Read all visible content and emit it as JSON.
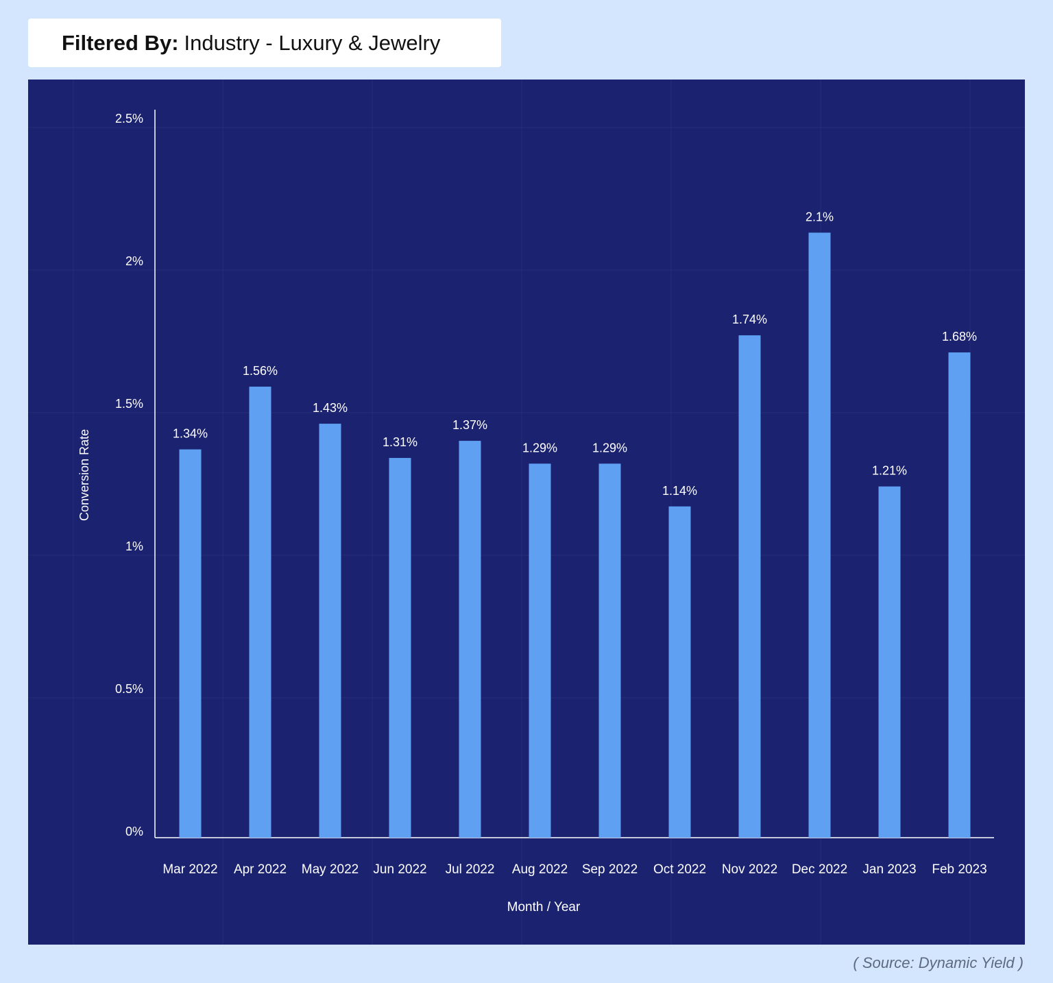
{
  "filter": {
    "label": "Filtered By:",
    "value": "Industry - Luxury & Jewelry"
  },
  "source": "( Source: Dynamic Yield )",
  "colors": {
    "page_background": "#d3e6fd",
    "chart_background": "#1b2270",
    "bar": "#60a0f2",
    "text": "#ffffff"
  },
  "chart_data": {
    "type": "bar",
    "categories": [
      "Mar 2022",
      "Apr 2022",
      "May 2022",
      "Jun 2022",
      "Jul 2022",
      "Aug 2022",
      "Sep 2022",
      "Oct 2022",
      "Nov 2022",
      "Dec 2022",
      "Jan 2023",
      "Feb 2023"
    ],
    "values": [
      1.34,
      1.56,
      1.43,
      1.31,
      1.37,
      1.29,
      1.29,
      1.14,
      1.74,
      2.1,
      1.21,
      1.68
    ],
    "value_labels": [
      "1.34%",
      "1.56%",
      "1.43%",
      "1.31%",
      "1.37%",
      "1.29%",
      "1.29%",
      "1.14%",
      "1.74%",
      "2.1%",
      "1.21%",
      "1.68%"
    ],
    "xlabel": "Month / Year",
    "ylabel": "Conversion Rate",
    "ylim": [
      0,
      2.5
    ],
    "yticks": [
      0,
      0.5,
      1,
      1.5,
      2,
      2.5
    ],
    "ytick_labels": [
      "0%",
      "0.5%",
      "1%",
      "1.5%",
      "2%",
      "2.5%"
    ],
    "grid": true,
    "legend": "none"
  }
}
